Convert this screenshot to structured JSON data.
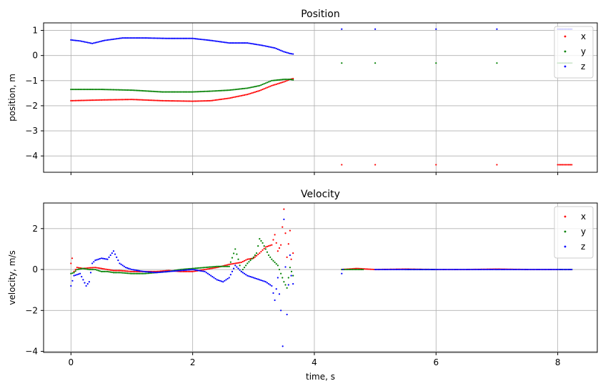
{
  "chart_data": [
    {
      "type": "scatter",
      "title": "Position",
      "xlabel": "",
      "ylabel": "position, m",
      "xlim": [
        -0.45,
        8.65
      ],
      "ylim": [
        -4.65,
        1.3
      ],
      "xticks": [
        0,
        2,
        4,
        6,
        8
      ],
      "yticks": [
        1,
        0,
        -1,
        -2,
        -3,
        -4
      ],
      "ytick_labels": [
        "1",
        "0",
        "−1",
        "−2",
        "−3",
        "−4"
      ],
      "grid": true,
      "legend": "top-right",
      "series": [
        {
          "name": "x",
          "color": "#ff0000",
          "x": [
            0,
            0.5,
            1,
            1.5,
            2,
            2.3,
            2.6,
            2.9,
            3.1,
            3.3,
            3.5,
            3.6,
            3.65,
            4.45,
            5,
            6,
            7,
            8,
            8.23
          ],
          "y": [
            -1.8,
            -1.77,
            -1.75,
            -1.8,
            -1.82,
            -1.8,
            -1.7,
            -1.55,
            -1.4,
            -1.2,
            -1.05,
            -0.95,
            -0.92,
            -4.35,
            -4.35,
            -4.35,
            -4.35,
            -4.35,
            -4.35
          ]
        },
        {
          "name": "y",
          "color": "#008000",
          "x": [
            0,
            0.5,
            1,
            1.5,
            2,
            2.3,
            2.6,
            2.9,
            3.1,
            3.3,
            3.5,
            3.6,
            3.65,
            4.45,
            5,
            6,
            7,
            8,
            8.23
          ],
          "y": [
            -1.35,
            -1.35,
            -1.38,
            -1.45,
            -1.45,
            -1.42,
            -1.38,
            -1.3,
            -1.2,
            -1.0,
            -0.95,
            -0.95,
            -0.97,
            -0.3,
            -0.3,
            -0.3,
            -0.3,
            -0.3,
            -0.3
          ]
        },
        {
          "name": "z",
          "color": "#0000ff",
          "x": [
            0,
            0.15,
            0.35,
            0.55,
            0.85,
            1.2,
            1.6,
            2.0,
            2.3,
            2.6,
            2.9,
            3.15,
            3.35,
            3.5,
            3.6,
            3.65,
            4.45,
            5,
            6,
            7,
            8,
            8.23
          ],
          "y": [
            0.62,
            0.58,
            0.48,
            0.6,
            0.7,
            0.7,
            0.68,
            0.68,
            0.6,
            0.5,
            0.5,
            0.4,
            0.3,
            0.15,
            0.08,
            0.06,
            1.05,
            1.05,
            1.05,
            1.05,
            1.05,
            1.05
          ]
        }
      ]
    },
    {
      "type": "scatter",
      "title": "Velocity",
      "xlabel": "time, s",
      "ylabel": "velocity, m/s",
      "xlim": [
        -0.45,
        8.65
      ],
      "ylim": [
        -4.05,
        3.25
      ],
      "xticks": [
        0,
        2,
        4,
        6,
        8
      ],
      "yticks": [
        2,
        0,
        -2,
        -4
      ],
      "ytick_labels": [
        "2",
        "0",
        "−2",
        "−4"
      ],
      "grid": true,
      "legend": "top-right",
      "series": [
        {
          "name": "x",
          "color": "#ff0000",
          "x": [
            0,
            0.02,
            0.05,
            0.1,
            0.2,
            0.3,
            0.4,
            0.5,
            0.6,
            0.7,
            0.8,
            1.0,
            1.2,
            1.4,
            1.6,
            1.8,
            2.0,
            2.2,
            2.4,
            2.6,
            2.7,
            2.8,
            2.9,
            3.0,
            3.1,
            3.2,
            3.3,
            3.35,
            3.4,
            3.45,
            3.5,
            3.55,
            3.6,
            3.62,
            3.65,
            4.45,
            4.7,
            5.0,
            5.5,
            6.0,
            6.5,
            7.0,
            7.5,
            8.0,
            8.23
          ],
          "y": [
            0.3,
            0.55,
            -0.1,
            0.1,
            0.05,
            0.08,
            0.1,
            0.05,
            0.0,
            -0.05,
            -0.05,
            -0.1,
            -0.1,
            -0.1,
            -0.05,
            -0.1,
            -0.1,
            0.0,
            0.1,
            0.25,
            0.3,
            0.35,
            0.5,
            0.55,
            0.8,
            1.1,
            1.2,
            1.7,
            0.9,
            1.2,
            2.95,
            0.6,
            1.9,
            0.5,
            0.8,
            0.0,
            0.05,
            0.0,
            0.02,
            0.0,
            0.0,
            0.02,
            0.0,
            0.0,
            0.0
          ]
        },
        {
          "name": "y",
          "color": "#008000",
          "x": [
            0,
            0.05,
            0.1,
            0.2,
            0.3,
            0.4,
            0.5,
            0.6,
            0.7,
            0.8,
            1.0,
            1.2,
            1.4,
            1.6,
            1.8,
            2.0,
            2.2,
            2.4,
            2.6,
            2.7,
            2.75,
            2.8,
            2.9,
            3.0,
            3.05,
            3.1,
            3.15,
            3.2,
            3.25,
            3.3,
            3.4,
            3.5,
            3.55,
            3.6,
            3.65,
            4.45,
            4.8,
            5.5,
            6.0,
            7.0,
            8.0,
            8.23
          ],
          "y": [
            -0.2,
            -0.15,
            0.0,
            0.05,
            0.0,
            0.0,
            -0.1,
            -0.1,
            -0.15,
            -0.15,
            -0.2,
            -0.2,
            -0.15,
            -0.1,
            0.0,
            0.05,
            0.1,
            0.15,
            0.15,
            1.0,
            0.5,
            -0.1,
            0.3,
            0.6,
            0.8,
            1.5,
            1.3,
            1.0,
            0.7,
            0.5,
            0.2,
            -0.6,
            -0.9,
            0.1,
            -0.3,
            0.0,
            0.0,
            0.0,
            0.0,
            0.0,
            0.0,
            0.0
          ]
        },
        {
          "name": "z",
          "color": "#0000ff",
          "x": [
            0,
            0.05,
            0.15,
            0.2,
            0.25,
            0.3,
            0.35,
            0.4,
            0.5,
            0.6,
            0.7,
            0.8,
            0.9,
            1.0,
            1.2,
            1.4,
            1.6,
            1.8,
            2.0,
            2.2,
            2.3,
            2.4,
            2.5,
            2.6,
            2.7,
            2.8,
            2.9,
            3.0,
            3.1,
            3.2,
            3.3,
            3.35,
            3.4,
            3.45,
            3.48,
            3.5,
            3.55,
            3.6,
            3.62,
            3.65,
            4.45,
            4.47,
            5.0,
            5.5,
            6.0,
            6.5,
            7.0,
            7.5,
            8.0,
            8.23
          ],
          "y": [
            -0.8,
            -0.3,
            -0.2,
            -0.5,
            -0.8,
            -0.6,
            0.3,
            0.45,
            0.55,
            0.5,
            0.9,
            0.3,
            0.1,
            0.0,
            -0.1,
            -0.15,
            -0.1,
            -0.05,
            0.0,
            -0.1,
            -0.3,
            -0.5,
            -0.6,
            -0.4,
            0.2,
            -0.1,
            -0.3,
            -0.4,
            -0.5,
            -0.6,
            -0.8,
            -1.5,
            -0.4,
            -2.0,
            -3.75,
            2.45,
            -2.2,
            0.7,
            -0.3,
            -0.7,
            -0.2,
            0.0,
            0.0,
            0.0,
            0.0,
            0.0,
            0.0,
            0.0,
            0.0,
            0.0
          ]
        }
      ]
    }
  ]
}
